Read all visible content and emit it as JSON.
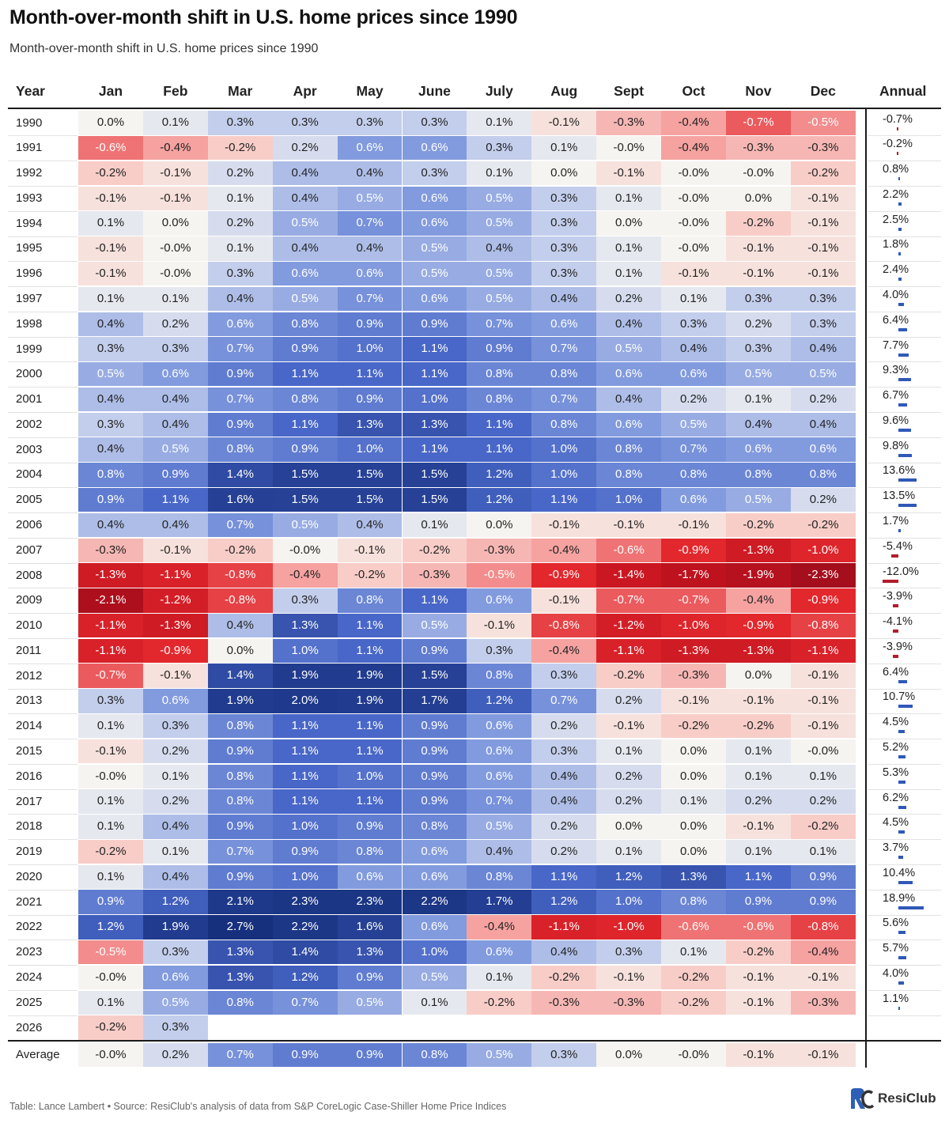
{
  "title": "Month-over-month shift in U.S. home prices since 1990",
  "subtitle": "Month-over-month shift in U.S. home prices since 1990",
  "footer": "Table: Lance Lambert • Source: ResiClub's analysis of data from S&P CoreLogic Case-Shiller Home Price Indices",
  "logo": {
    "text": "ResiClub",
    "icon": "resiclub-logo-icon"
  },
  "colors": {
    "positive": "#1f3f91",
    "negative": "#b3101f",
    "neutral": "#f5f3ef",
    "annual_bar_pos": "#2f58b8",
    "annual_bar_neg": "#b31b2c"
  },
  "chart_data": {
    "type": "table",
    "columns": [
      "Year",
      "Jan",
      "Feb",
      "Mar",
      "Apr",
      "May",
      "June",
      "July",
      "Aug",
      "Sept",
      "Oct",
      "Nov",
      "Dec",
      "Annual"
    ],
    "rows": [
      {
        "year": "1990",
        "values": [
          "0.0%",
          "0.1%",
          "0.3%",
          "0.3%",
          "0.3%",
          "0.3%",
          "0.1%",
          "-0.1%",
          "-0.3%",
          "-0.4%",
          "-0.7%",
          "-0.5%"
        ],
        "annual": "-0.7%"
      },
      {
        "year": "1991",
        "values": [
          "-0.6%",
          "-0.4%",
          "-0.2%",
          "0.2%",
          "0.6%",
          "0.6%",
          "0.3%",
          "0.1%",
          "-0.0%",
          "-0.4%",
          "-0.3%",
          "-0.3%"
        ],
        "annual": "-0.2%"
      },
      {
        "year": "1992",
        "values": [
          "-0.2%",
          "-0.1%",
          "0.2%",
          "0.4%",
          "0.4%",
          "0.3%",
          "0.1%",
          "0.0%",
          "-0.1%",
          "-0.0%",
          "-0.0%",
          "-0.2%"
        ],
        "annual": "0.8%"
      },
      {
        "year": "1993",
        "values": [
          "-0.1%",
          "-0.1%",
          "0.1%",
          "0.4%",
          "0.5%",
          "0.6%",
          "0.5%",
          "0.3%",
          "0.1%",
          "-0.0%",
          "0.0%",
          "-0.1%"
        ],
        "annual": "2.2%"
      },
      {
        "year": "1994",
        "values": [
          "0.1%",
          "0.0%",
          "0.2%",
          "0.5%",
          "0.7%",
          "0.6%",
          "0.5%",
          "0.3%",
          "0.0%",
          "-0.0%",
          "-0.2%",
          "-0.1%"
        ],
        "annual": "2.5%"
      },
      {
        "year": "1995",
        "values": [
          "-0.1%",
          "-0.0%",
          "0.1%",
          "0.4%",
          "0.4%",
          "0.5%",
          "0.4%",
          "0.3%",
          "0.1%",
          "-0.0%",
          "-0.1%",
          "-0.1%"
        ],
        "annual": "1.8%"
      },
      {
        "year": "1996",
        "values": [
          "-0.1%",
          "-0.0%",
          "0.3%",
          "0.6%",
          "0.6%",
          "0.5%",
          "0.5%",
          "0.3%",
          "0.1%",
          "-0.1%",
          "-0.1%",
          "-0.1%"
        ],
        "annual": "2.4%"
      },
      {
        "year": "1997",
        "values": [
          "0.1%",
          "0.1%",
          "0.4%",
          "0.5%",
          "0.7%",
          "0.6%",
          "0.5%",
          "0.4%",
          "0.2%",
          "0.1%",
          "0.3%",
          "0.3%"
        ],
        "annual": "4.0%"
      },
      {
        "year": "1998",
        "values": [
          "0.4%",
          "0.2%",
          "0.6%",
          "0.8%",
          "0.9%",
          "0.9%",
          "0.7%",
          "0.6%",
          "0.4%",
          "0.3%",
          "0.2%",
          "0.3%"
        ],
        "annual": "6.4%"
      },
      {
        "year": "1999",
        "values": [
          "0.3%",
          "0.3%",
          "0.7%",
          "0.9%",
          "1.0%",
          "1.1%",
          "0.9%",
          "0.7%",
          "0.5%",
          "0.4%",
          "0.3%",
          "0.4%"
        ],
        "annual": "7.7%"
      },
      {
        "year": "2000",
        "values": [
          "0.5%",
          "0.6%",
          "0.9%",
          "1.1%",
          "1.1%",
          "1.1%",
          "0.8%",
          "0.8%",
          "0.6%",
          "0.6%",
          "0.5%",
          "0.5%"
        ],
        "annual": "9.3%"
      },
      {
        "year": "2001",
        "values": [
          "0.4%",
          "0.4%",
          "0.7%",
          "0.8%",
          "0.9%",
          "1.0%",
          "0.8%",
          "0.7%",
          "0.4%",
          "0.2%",
          "0.1%",
          "0.2%"
        ],
        "annual": "6.7%"
      },
      {
        "year": "2002",
        "values": [
          "0.3%",
          "0.4%",
          "0.9%",
          "1.1%",
          "1.3%",
          "1.3%",
          "1.1%",
          "0.8%",
          "0.6%",
          "0.5%",
          "0.4%",
          "0.4%"
        ],
        "annual": "9.6%"
      },
      {
        "year": "2003",
        "values": [
          "0.4%",
          "0.5%",
          "0.8%",
          "0.9%",
          "1.0%",
          "1.1%",
          "1.1%",
          "1.0%",
          "0.8%",
          "0.7%",
          "0.6%",
          "0.6%"
        ],
        "annual": "9.8%"
      },
      {
        "year": "2004",
        "values": [
          "0.8%",
          "0.9%",
          "1.4%",
          "1.5%",
          "1.5%",
          "1.5%",
          "1.2%",
          "1.0%",
          "0.8%",
          "0.8%",
          "0.8%",
          "0.8%"
        ],
        "annual": "13.6%"
      },
      {
        "year": "2005",
        "values": [
          "0.9%",
          "1.1%",
          "1.6%",
          "1.5%",
          "1.5%",
          "1.5%",
          "1.2%",
          "1.1%",
          "1.0%",
          "0.6%",
          "0.5%",
          "0.2%"
        ],
        "annual": "13.5%"
      },
      {
        "year": "2006",
        "values": [
          "0.4%",
          "0.4%",
          "0.7%",
          "0.5%",
          "0.4%",
          "0.1%",
          "0.0%",
          "-0.1%",
          "-0.1%",
          "-0.1%",
          "-0.2%",
          "-0.2%"
        ],
        "annual": "1.7%"
      },
      {
        "year": "2007",
        "values": [
          "-0.3%",
          "-0.1%",
          "-0.2%",
          "-0.0%",
          "-0.1%",
          "-0.2%",
          "-0.3%",
          "-0.4%",
          "-0.6%",
          "-0.9%",
          "-1.3%",
          "-1.0%"
        ],
        "annual": "-5.4%"
      },
      {
        "year": "2008",
        "values": [
          "-1.3%",
          "-1.1%",
          "-0.8%",
          "-0.4%",
          "-0.2%",
          "-0.3%",
          "-0.5%",
          "-0.9%",
          "-1.4%",
          "-1.7%",
          "-1.9%",
          "-2.3%"
        ],
        "annual": "-12.0%"
      },
      {
        "year": "2009",
        "values": [
          "-2.1%",
          "-1.2%",
          "-0.8%",
          "0.3%",
          "0.8%",
          "1.1%",
          "0.6%",
          "-0.1%",
          "-0.7%",
          "-0.7%",
          "-0.4%",
          "-0.9%"
        ],
        "annual": "-3.9%"
      },
      {
        "year": "2010",
        "values": [
          "-1.1%",
          "-1.3%",
          "0.4%",
          "1.3%",
          "1.1%",
          "0.5%",
          "-0.1%",
          "-0.8%",
          "-1.2%",
          "-1.0%",
          "-0.9%",
          "-0.8%"
        ],
        "annual": "-4.1%"
      },
      {
        "year": "2011",
        "values": [
          "-1.1%",
          "-0.9%",
          "0.0%",
          "1.0%",
          "1.1%",
          "0.9%",
          "0.3%",
          "-0.4%",
          "-1.1%",
          "-1.3%",
          "-1.3%",
          "-1.1%"
        ],
        "annual": "-3.9%"
      },
      {
        "year": "2012",
        "values": [
          "-0.7%",
          "-0.1%",
          "1.4%",
          "1.9%",
          "1.9%",
          "1.5%",
          "0.8%",
          "0.3%",
          "-0.2%",
          "-0.3%",
          "0.0%",
          "-0.1%"
        ],
        "annual": "6.4%"
      },
      {
        "year": "2013",
        "values": [
          "0.3%",
          "0.6%",
          "1.9%",
          "2.0%",
          "1.9%",
          "1.7%",
          "1.2%",
          "0.7%",
          "0.2%",
          "-0.1%",
          "-0.1%",
          "-0.1%"
        ],
        "annual": "10.7%"
      },
      {
        "year": "2014",
        "values": [
          "0.1%",
          "0.3%",
          "0.8%",
          "1.1%",
          "1.1%",
          "0.9%",
          "0.6%",
          "0.2%",
          "-0.1%",
          "-0.2%",
          "-0.2%",
          "-0.1%"
        ],
        "annual": "4.5%"
      },
      {
        "year": "2015",
        "values": [
          "-0.1%",
          "0.2%",
          "0.9%",
          "1.1%",
          "1.1%",
          "0.9%",
          "0.6%",
          "0.3%",
          "0.1%",
          "0.0%",
          "0.1%",
          "-0.0%"
        ],
        "annual": "5.2%"
      },
      {
        "year": "2016",
        "values": [
          "-0.0%",
          "0.1%",
          "0.8%",
          "1.1%",
          "1.0%",
          "0.9%",
          "0.6%",
          "0.4%",
          "0.2%",
          "0.0%",
          "0.1%",
          "0.1%"
        ],
        "annual": "5.3%"
      },
      {
        "year": "2017",
        "values": [
          "0.1%",
          "0.2%",
          "0.8%",
          "1.1%",
          "1.1%",
          "0.9%",
          "0.7%",
          "0.4%",
          "0.2%",
          "0.1%",
          "0.2%",
          "0.2%"
        ],
        "annual": "6.2%"
      },
      {
        "year": "2018",
        "values": [
          "0.1%",
          "0.4%",
          "0.9%",
          "1.0%",
          "0.9%",
          "0.8%",
          "0.5%",
          "0.2%",
          "0.0%",
          "0.0%",
          "-0.1%",
          "-0.2%"
        ],
        "annual": "4.5%"
      },
      {
        "year": "2019",
        "values": [
          "-0.2%",
          "0.1%",
          "0.7%",
          "0.9%",
          "0.8%",
          "0.6%",
          "0.4%",
          "0.2%",
          "0.1%",
          "0.0%",
          "0.1%",
          "0.1%"
        ],
        "annual": "3.7%"
      },
      {
        "year": "2020",
        "values": [
          "0.1%",
          "0.4%",
          "0.9%",
          "1.0%",
          "0.6%",
          "0.6%",
          "0.8%",
          "1.1%",
          "1.2%",
          "1.3%",
          "1.1%",
          "0.9%"
        ],
        "annual": "10.4%"
      },
      {
        "year": "2021",
        "values": [
          "0.9%",
          "1.2%",
          "2.1%",
          "2.3%",
          "2.3%",
          "2.2%",
          "1.7%",
          "1.2%",
          "1.0%",
          "0.8%",
          "0.9%",
          "0.9%"
        ],
        "annual": "18.9%"
      },
      {
        "year": "2022",
        "values": [
          "1.2%",
          "1.9%",
          "2.7%",
          "2.2%",
          "1.6%",
          "0.6%",
          "-0.4%",
          "-1.1%",
          "-1.0%",
          "-0.6%",
          "-0.6%",
          "-0.8%"
        ],
        "annual": "5.6%"
      },
      {
        "year": "2023",
        "values": [
          "-0.5%",
          "0.3%",
          "1.3%",
          "1.4%",
          "1.3%",
          "1.0%",
          "0.6%",
          "0.4%",
          "0.3%",
          "0.1%",
          "-0.2%",
          "-0.4%"
        ],
        "annual": "5.7%"
      },
      {
        "year": "2024",
        "values": [
          "-0.0%",
          "0.6%",
          "1.3%",
          "1.2%",
          "0.9%",
          "0.5%",
          "0.1%",
          "-0.2%",
          "-0.1%",
          "-0.2%",
          "-0.1%",
          "-0.1%"
        ],
        "annual": "4.0%"
      },
      {
        "year": "2025",
        "values": [
          "0.1%",
          "0.5%",
          "0.8%",
          "0.7%",
          "0.5%",
          "0.1%",
          "-0.2%",
          "-0.3%",
          "-0.3%",
          "-0.2%",
          "-0.1%",
          "-0.3%"
        ],
        "annual": "1.1%"
      },
      {
        "year": "2026",
        "values": [
          "-0.2%",
          "0.3%"
        ],
        "annual": ""
      }
    ],
    "average": {
      "label": "Average",
      "values": [
        "-0.0%",
        "0.2%",
        "0.7%",
        "0.9%",
        "0.9%",
        "0.8%",
        "0.5%",
        "0.3%",
        "0.0%",
        "-0.0%",
        "-0.1%",
        "-0.1%"
      ]
    }
  }
}
